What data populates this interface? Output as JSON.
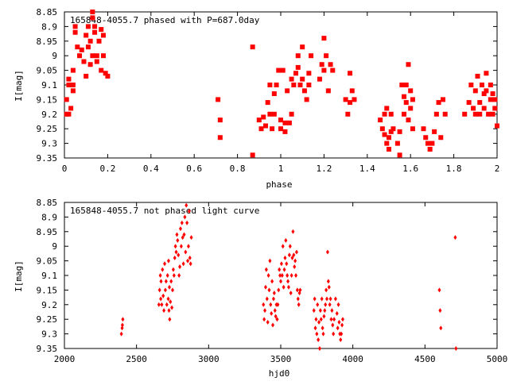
{
  "chart_data": [
    {
      "type": "scatter",
      "title": "165848-4055.7 phased with P=687.0day",
      "xlabel": "phase",
      "ylabel": "I[mag]",
      "xlim": [
        0,
        2
      ],
      "ylim": [
        8.85,
        9.35
      ],
      "y_inverted": true,
      "x_ticks": [
        "0",
        "0.2",
        "0.4",
        "0.6",
        "0.8",
        "1",
        "1.2",
        "1.4",
        "1.6",
        "1.8",
        "2"
      ],
      "y_ticks": [
        "8.85",
        "8.9",
        "8.95",
        "9",
        "9.05",
        "9.1",
        "9.15",
        "9.2",
        "9.25",
        "9.3",
        "9.35"
      ],
      "marker": "filled-square",
      "color": "#ff0000",
      "series": [
        {
          "x": [
            0.01,
            0.01,
            0.02,
            0.02,
            0.02,
            0.03,
            0.03,
            0.04,
            0.04,
            0.04,
            0.05,
            0.05,
            0.06,
            0.07,
            0.08,
            0.09,
            0.1,
            0.1,
            0.11,
            0.11,
            0.12,
            0.12,
            0.13,
            0.13,
            0.13,
            0.14,
            0.14,
            0.15,
            0.15,
            0.16,
            0.17,
            0.17,
            0.18,
            0.18,
            0.19,
            0.2,
            0.71,
            0.72,
            0.72,
            0.87,
            0.87,
            0.9,
            0.91,
            0.92,
            0.93,
            0.94,
            0.95,
            0.95,
            0.96,
            0.97,
            0.97,
            0.98,
            0.99,
            1.0,
            1.0,
            1.01,
            1.02,
            1.02,
            1.03,
            1.04,
            1.05,
            1.05,
            1.06,
            1.07,
            1.08,
            1.08,
            1.09,
            1.1,
            1.1,
            1.11,
            1.12,
            1.13,
            1.13,
            1.14,
            1.18,
            1.19,
            1.2,
            1.2,
            1.21,
            1.22,
            1.23,
            1.24,
            1.3,
            1.31,
            1.32,
            1.32,
            1.33,
            1.34,
            1.46,
            1.47,
            1.48,
            1.48,
            1.49,
            1.49,
            1.5,
            1.5,
            1.51,
            1.51,
            1.52,
            1.54,
            1.55,
            1.55,
            1.56,
            1.57,
            1.57,
            1.58,
            1.58,
            1.59,
            1.59,
            1.6,
            1.6,
            1.61,
            1.61,
            1.66,
            1.67,
            1.68,
            1.69,
            1.7,
            1.71,
            1.72,
            1.73,
            1.74,
            1.75,
            1.76,
            1.85,
            1.87,
            1.88,
            1.89,
            1.9,
            1.9,
            1.91,
            1.92,
            1.92,
            1.93,
            1.94,
            1.94,
            1.95,
            1.95,
            1.96,
            1.97,
            1.97,
            1.98,
            1.98,
            1.99,
            1.99,
            2.0
          ],
          "y": [
            9.2,
            9.15,
            9.2,
            9.1,
            9.08,
            9.1,
            9.18,
            9.05,
            9.12,
            9.1,
            8.92,
            8.9,
            8.97,
            9.0,
            8.98,
            9.02,
            9.07,
            8.93,
            8.97,
            8.9,
            9.03,
            8.95,
            9.0,
            8.87,
            8.85,
            8.92,
            8.9,
            9.02,
            9.0,
            8.95,
            9.05,
            8.91,
            9.0,
            8.93,
            9.06,
            9.07,
            9.15,
            9.22,
            9.28,
            8.97,
            9.34,
            9.22,
            9.25,
            9.21,
            9.24,
            9.16,
            9.1,
            9.2,
            9.25,
            9.13,
            9.2,
            9.1,
            9.05,
            9.22,
            9.25,
            9.05,
            9.26,
            9.23,
            9.12,
            9.23,
            9.2,
            9.08,
            9.1,
            9.06,
            9.0,
            9.04,
            9.1,
            8.97,
            9.08,
            9.12,
            9.15,
            9.1,
            9.06,
            9.0,
            9.08,
            9.03,
            8.94,
            9.05,
            9.0,
            9.12,
            9.03,
            9.05,
            9.15,
            9.2,
            9.16,
            9.06,
            9.12,
            9.15,
            9.22,
            9.25,
            9.2,
            9.27,
            9.3,
            9.18,
            9.28,
            9.32,
            9.26,
            9.2,
            9.25,
            9.3,
            9.34,
            9.26,
            9.1,
            9.14,
            9.2,
            9.16,
            9.1,
            9.03,
            9.22,
            9.18,
            9.12,
            9.25,
            9.15,
            9.25,
            9.28,
            9.3,
            9.32,
            9.3,
            9.26,
            9.2,
            9.16,
            9.28,
            9.15,
            9.2,
            9.2,
            9.16,
            9.1,
            9.18,
            9.12,
            9.2,
            9.07,
            9.16,
            9.2,
            9.1,
            9.13,
            9.18,
            9.06,
            9.12,
            9.2,
            9.15,
            9.1,
            9.13,
            9.2,
            9.15,
            9.18,
            9.24
          ]
        }
      ]
    },
    {
      "type": "scatter",
      "title": "165848-4055.7 not phased light curve",
      "xlabel": "hjd0",
      "ylabel": "I[mag]",
      "xlim": [
        2000,
        5000
      ],
      "ylim": [
        8.85,
        9.35
      ],
      "y_inverted": true,
      "x_ticks": [
        "2000",
        "2500",
        "3000",
        "3500",
        "4000",
        "4500",
        "5000"
      ],
      "y_ticks": [
        "8.85",
        "8.9",
        "8.95",
        "9",
        "9.05",
        "9.1",
        "9.15",
        "9.2",
        "9.25",
        "9.3",
        "9.35"
      ],
      "marker": "small-diamond",
      "color": "#ff0000",
      "series": [
        {
          "x": [
            2395,
            2400,
            2402,
            2405,
            2655,
            2660,
            2665,
            2668,
            2670,
            2675,
            2680,
            2685,
            2690,
            2695,
            2700,
            2705,
            2710,
            2715,
            2720,
            2722,
            2725,
            2728,
            2730,
            2735,
            2740,
            2745,
            2750,
            2755,
            2760,
            2765,
            2770,
            2775,
            2780,
            2785,
            2790,
            2795,
            2800,
            2805,
            2810,
            2815,
            2820,
            2825,
            2830,
            2835,
            2840,
            2845,
            2850,
            2855,
            2860,
            2865,
            2870,
            2875,
            2880,
            3380,
            3385,
            3390,
            3395,
            3400,
            3405,
            3410,
            3415,
            3420,
            3425,
            3430,
            3435,
            3440,
            3445,
            3450,
            3455,
            3460,
            3465,
            3470,
            3475,
            3480,
            3485,
            3490,
            3495,
            3500,
            3505,
            3510,
            3515,
            3520,
            3525,
            3530,
            3535,
            3540,
            3545,
            3550,
            3555,
            3560,
            3565,
            3570,
            3575,
            3580,
            3585,
            3590,
            3595,
            3600,
            3605,
            3610,
            3615,
            3620,
            3625,
            3630,
            3635,
            3730,
            3735,
            3740,
            3745,
            3750,
            3755,
            3760,
            3765,
            3770,
            3775,
            3780,
            3785,
            3790,
            3795,
            3800,
            3805,
            3810,
            3815,
            3820,
            3825,
            3830,
            3835,
            3840,
            3845,
            3850,
            3855,
            3860,
            3865,
            3870,
            3880,
            3890,
            3895,
            3900,
            3905,
            3910,
            3915,
            3920,
            3925,
            3930,
            4600,
            4605,
            4610,
            4710,
            4715
          ],
          "y": [
            9.3,
            9.28,
            9.27,
            9.25,
            9.2,
            9.15,
            9.1,
            9.18,
            9.12,
            9.2,
            9.08,
            9.17,
            9.22,
            9.06,
            9.15,
            9.12,
            9.2,
            9.1,
            9.18,
            9.05,
            9.22,
            9.14,
            9.25,
            9.19,
            9.12,
            9.21,
            9.15,
            9.08,
            9.1,
            9.04,
            9.0,
            9.02,
            8.96,
            8.98,
            9.03,
            9.1,
            9.07,
            8.94,
            9.0,
            8.92,
            8.97,
            9.06,
            8.96,
            8.9,
            9.02,
            8.86,
            8.92,
            9.05,
            9.0,
            8.88,
            9.04,
            9.06,
            8.97,
            9.2,
            9.25,
            9.22,
            9.14,
            9.08,
            9.18,
            9.26,
            9.1,
            9.15,
            9.05,
            9.2,
            9.23,
            9.12,
            9.27,
            9.18,
            9.16,
            9.22,
            9.24,
            9.2,
            9.25,
            9.2,
            9.15,
            9.08,
            9.1,
            9.12,
            9.06,
            9.1,
            9.0,
            9.14,
            9.08,
            9.04,
            8.98,
            9.06,
            9.1,
            9.12,
            9.14,
            9.03,
            9.0,
            9.16,
            9.1,
            9.04,
            8.95,
            9.03,
            9.07,
            9.05,
            9.1,
            9.02,
            9.15,
            9.18,
            9.2,
            9.16,
            9.15,
            9.22,
            9.18,
            9.28,
            9.25,
            9.3,
            9.2,
            9.32,
            9.26,
            9.35,
            9.22,
            9.25,
            9.18,
            9.28,
            9.3,
            9.24,
            9.22,
            9.2,
            9.15,
            9.18,
            9.02,
            9.12,
            9.14,
            9.2,
            9.18,
            9.25,
            9.22,
            9.27,
            9.3,
            9.25,
            9.18,
            9.23,
            9.28,
            9.2,
            9.26,
            9.3,
            9.32,
            9.3,
            9.27,
            9.25,
            9.15,
            9.22,
            9.28,
            8.97,
            9.35
          ]
        }
      ]
    }
  ]
}
